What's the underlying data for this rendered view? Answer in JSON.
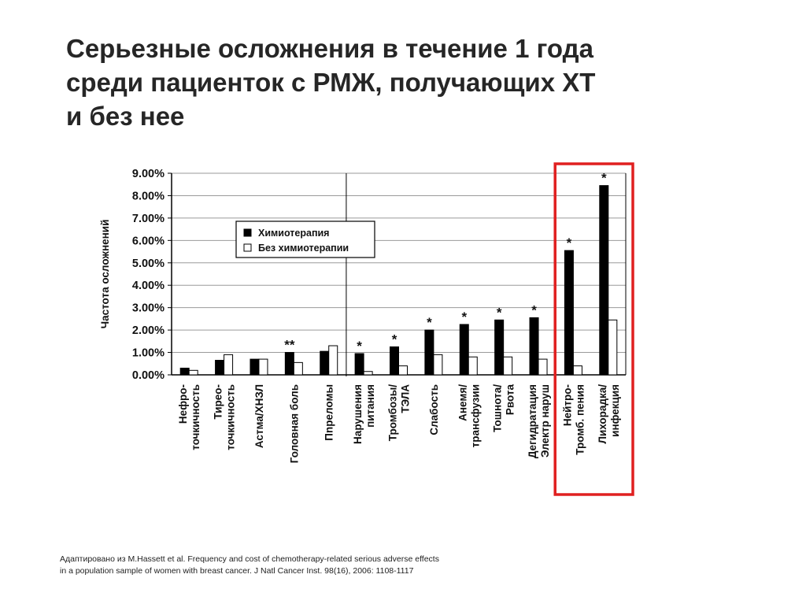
{
  "title": {
    "lines": [
      "Серьезные осложнения в течение 1 года",
      "среди пациенток с РМЖ, получающих ХТ",
      "и без нее"
    ]
  },
  "source": {
    "lines": [
      "Адаптировано из M.Hassett et al. Frequency and cost of chemotherapy-related serious adverse effects",
      "in a population sample of women with breast cancer. J Natl Cancer Inst. 98(16), 2006: 1108-1117"
    ]
  },
  "colors": {
    "chemo": "#000000",
    "no_chemo": "#ffffff",
    "highlight": "#e02020"
  },
  "chart_data": {
    "type": "bar",
    "ylabel": "Частота осложнений",
    "ylim": [
      0,
      9
    ],
    "yticks": [
      "0.00%",
      "1.00%",
      "2.00%",
      "3.00%",
      "4.00%",
      "5.00%",
      "6.00%",
      "7.00%",
      "8.00%",
      "9.00%"
    ],
    "legend": {
      "position": "upper-left"
    },
    "grid": "horizontal",
    "categories": [
      [
        "Нефро-",
        "точкичность"
      ],
      [
        "Тирео-",
        "точкичность"
      ],
      [
        "Астма/ХНЗЛ"
      ],
      [
        "Головная боль"
      ],
      [
        "Пnреломы"
      ],
      [
        "Нарушения",
        "питания"
      ],
      [
        "Тромбозы/",
        "ТЭЛА"
      ],
      [
        "Слабость"
      ],
      [
        "Анемя/",
        "трансфузии"
      ],
      [
        "Тошнота/",
        "Рвота"
      ],
      [
        "Дегидратация",
        "Электр наруш"
      ],
      [
        "Нейтро-",
        "Тромб. пения"
      ],
      [
        "Лихорадка/",
        "инфекция"
      ]
    ],
    "series": [
      {
        "name": "Химиотерапия",
        "values": [
          0.3,
          0.65,
          0.7,
          1.0,
          1.05,
          0.95,
          1.25,
          2.0,
          2.25,
          2.45,
          2.55,
          5.55,
          8.45
        ]
      },
      {
        "name": "Без химиотерапии",
        "values": [
          0.2,
          0.9,
          0.7,
          0.55,
          1.3,
          0.15,
          0.4,
          0.9,
          0.8,
          0.8,
          0.7,
          0.4,
          2.45
        ]
      }
    ],
    "significance": [
      "",
      "",
      "",
      "**",
      "",
      "*",
      "*",
      "*",
      "*",
      "*",
      "*",
      "*",
      "*"
    ],
    "group_divider_after_category": 4,
    "highlighted_categories": [
      11,
      12
    ]
  }
}
